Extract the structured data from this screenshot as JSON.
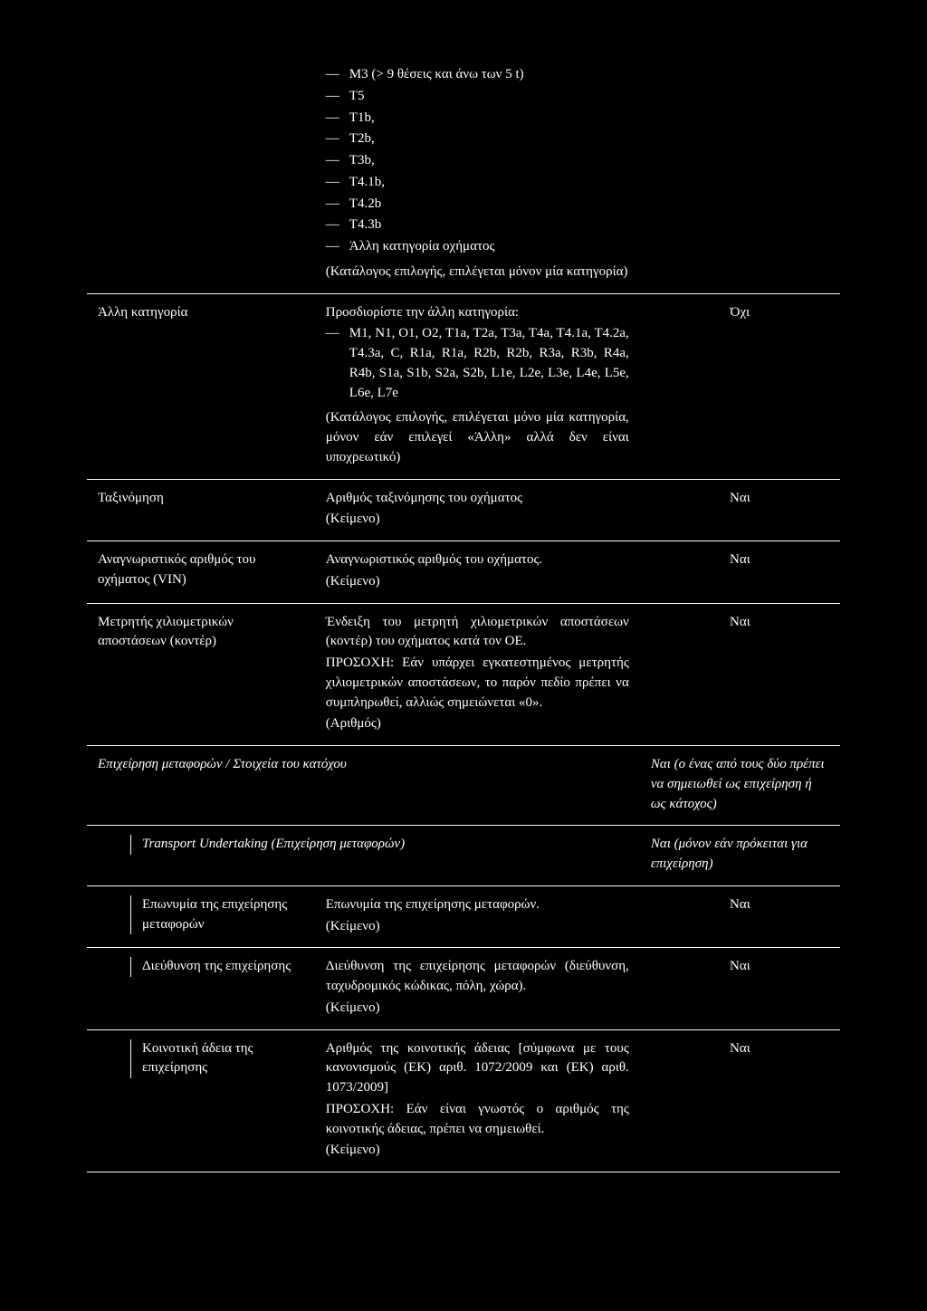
{
  "rows": {
    "r0": {
      "col1": "",
      "list": [
        "M3 (> 9 θέσεις και άνω των 5 t)",
        "T5",
        "T1b,",
        "T2b,",
        "T3b,",
        "T4.1b,",
        "T4.2b",
        "T4.3b",
        "Άλλη κατηγορία οχήματος"
      ],
      "tail": "(Κατάλογος επιλογής, επιλέγεται μόνον μία κατηγορία)",
      "col3": ""
    },
    "r1": {
      "col1": "Άλλη κατηγορία",
      "lead": "Προσδιορίστε την άλλη κατηγορία:",
      "list": [
        "M1, N1, O1, O2, T1a, T2a, T3a, T4a, T4.1a, T4.2a, T4.3a, C, R1a, R1a, R2b, R2b, R3a, R3b, R4a, R4b, S1a, S1b, S2a, S2b, L1e, L2e, L3e, L4e, L5e, L6e, L7e"
      ],
      "tail": "(Κατάλογος επιλογής, επιλέγεται μόνο μία κατηγορία, μόνον εάν επιλεγεί «Άλλη» αλλά δεν είναι υποχρεωτικό)",
      "col3": "Όχι"
    },
    "r2": {
      "col1": "Ταξινόμηση",
      "p1": "Αριθμός ταξινόμησης του οχήματος",
      "p2": "(Κείμενο)",
      "col3": "Ναι"
    },
    "r3": {
      "col1": "Αναγνωριστικός αριθμός του οχήματος (VIN)",
      "p1": "Αναγνωριστικός αριθμός του οχήματος.",
      "p2": "(Κείμενο)",
      "col3": "Ναι"
    },
    "r4": {
      "col1": "Μετρητής χιλιομετρικών αποστάσεων (κοντέρ)",
      "p1": "Ένδειξη του μετρητή χιλιομετρικών αποστάσεων (κοντέρ) του οχήματος κατά τον ΟΕ.",
      "p2": "ΠΡΟΣΟΧΗ: Εάν υπάρχει εγκατεστημένος μετρητής χιλιομετρικών αποστάσεων, το παρόν πεδίο πρέπει να συμπληρωθεί, αλλιώς σημειώνεται «0».",
      "p3": "(Αριθμός)",
      "col3": "Ναι"
    },
    "r5": {
      "col1": "Επιχείρηση μεταφορών / Στοιχεία του κατόχου",
      "col3": "Ναι (ο ένας από τους δύο πρέπει να σημειωθεί ως επιχείρηση ή ως κάτοχος)"
    },
    "r6": {
      "col1": "Transport Undertaking (Επιχείρηση μεταφορών)",
      "col3": "Ναι (μόνον εάν πρόκειται για επιχείρηση)"
    },
    "r7": {
      "col1": "Επωνυμία της επιχείρησης μεταφορών",
      "p1": "Επωνυμία της επιχείρησης μεταφορών.",
      "p2": "(Κείμενο)",
      "col3": "Ναι"
    },
    "r8": {
      "col1": "Διεύθυνση της επιχείρησης",
      "p1": "Διεύθυνση της επιχείρησης μεταφορών (διεύθυνση, ταχυδρομικός κώδικας, πόλη, χώρα).",
      "p2": "(Κείμενο)",
      "col3": "Ναι"
    },
    "r9": {
      "col1": "Κοινοτική άδεια της επιχείρησης",
      "p1": "Αριθμός της κοινοτικής άδειας [σύμφωνα με τους κανονισμούς (ΕΚ) αριθ. 1072/2009 και (ΕΚ) αριθ. 1073/2009]",
      "p2": "ΠΡΟΣΟΧΗ: Εάν είναι γνωστός ο αριθμός της κοινοτικής άδειας, πρέπει να σημειωθεί.",
      "p3": "(Κείμενο)",
      "col3": "Ναι"
    }
  }
}
